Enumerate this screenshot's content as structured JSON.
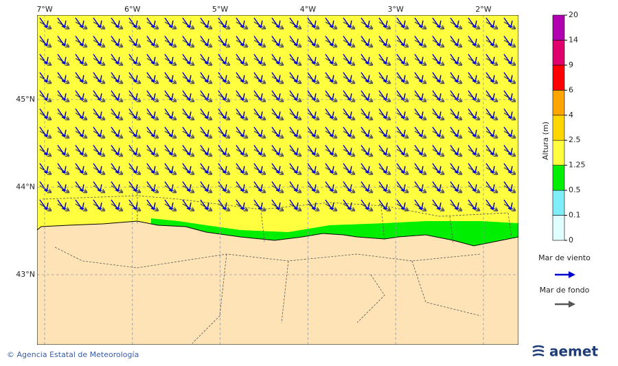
{
  "map": {
    "lon_labels": [
      {
        "value": -7,
        "label": "7°W"
      },
      {
        "value": -6,
        "label": "6°W"
      },
      {
        "value": -5,
        "label": "5°W"
      },
      {
        "value": -4,
        "label": "4°W"
      },
      {
        "value": -3,
        "label": "3°W"
      },
      {
        "value": -2,
        "label": "2°W"
      }
    ],
    "lat_labels": [
      {
        "value": 45,
        "label": "45°N"
      },
      {
        "value": 44,
        "label": "44°N"
      },
      {
        "value": 43,
        "label": "43°N"
      }
    ]
  },
  "colorbar": {
    "title": "Altura (m)",
    "ticks": [
      0,
      0.1,
      0.5,
      1.25,
      2.5,
      4,
      6,
      9,
      14,
      20
    ],
    "colors": [
      "#e0ffff",
      "#80eef8",
      "#00ee00",
      "#ffff40",
      "#ffd700",
      "#ffa500",
      "#ff0000",
      "#e0006e",
      "#b000b0"
    ]
  },
  "legend": [
    {
      "label": "Mar de viento",
      "color": "#0000cc"
    },
    {
      "label": "Mar de fondo",
      "color": "#555555"
    }
  ],
  "footer": {
    "credit": "© Agencia Estatal de Meteorología",
    "logo": "aemet"
  }
}
